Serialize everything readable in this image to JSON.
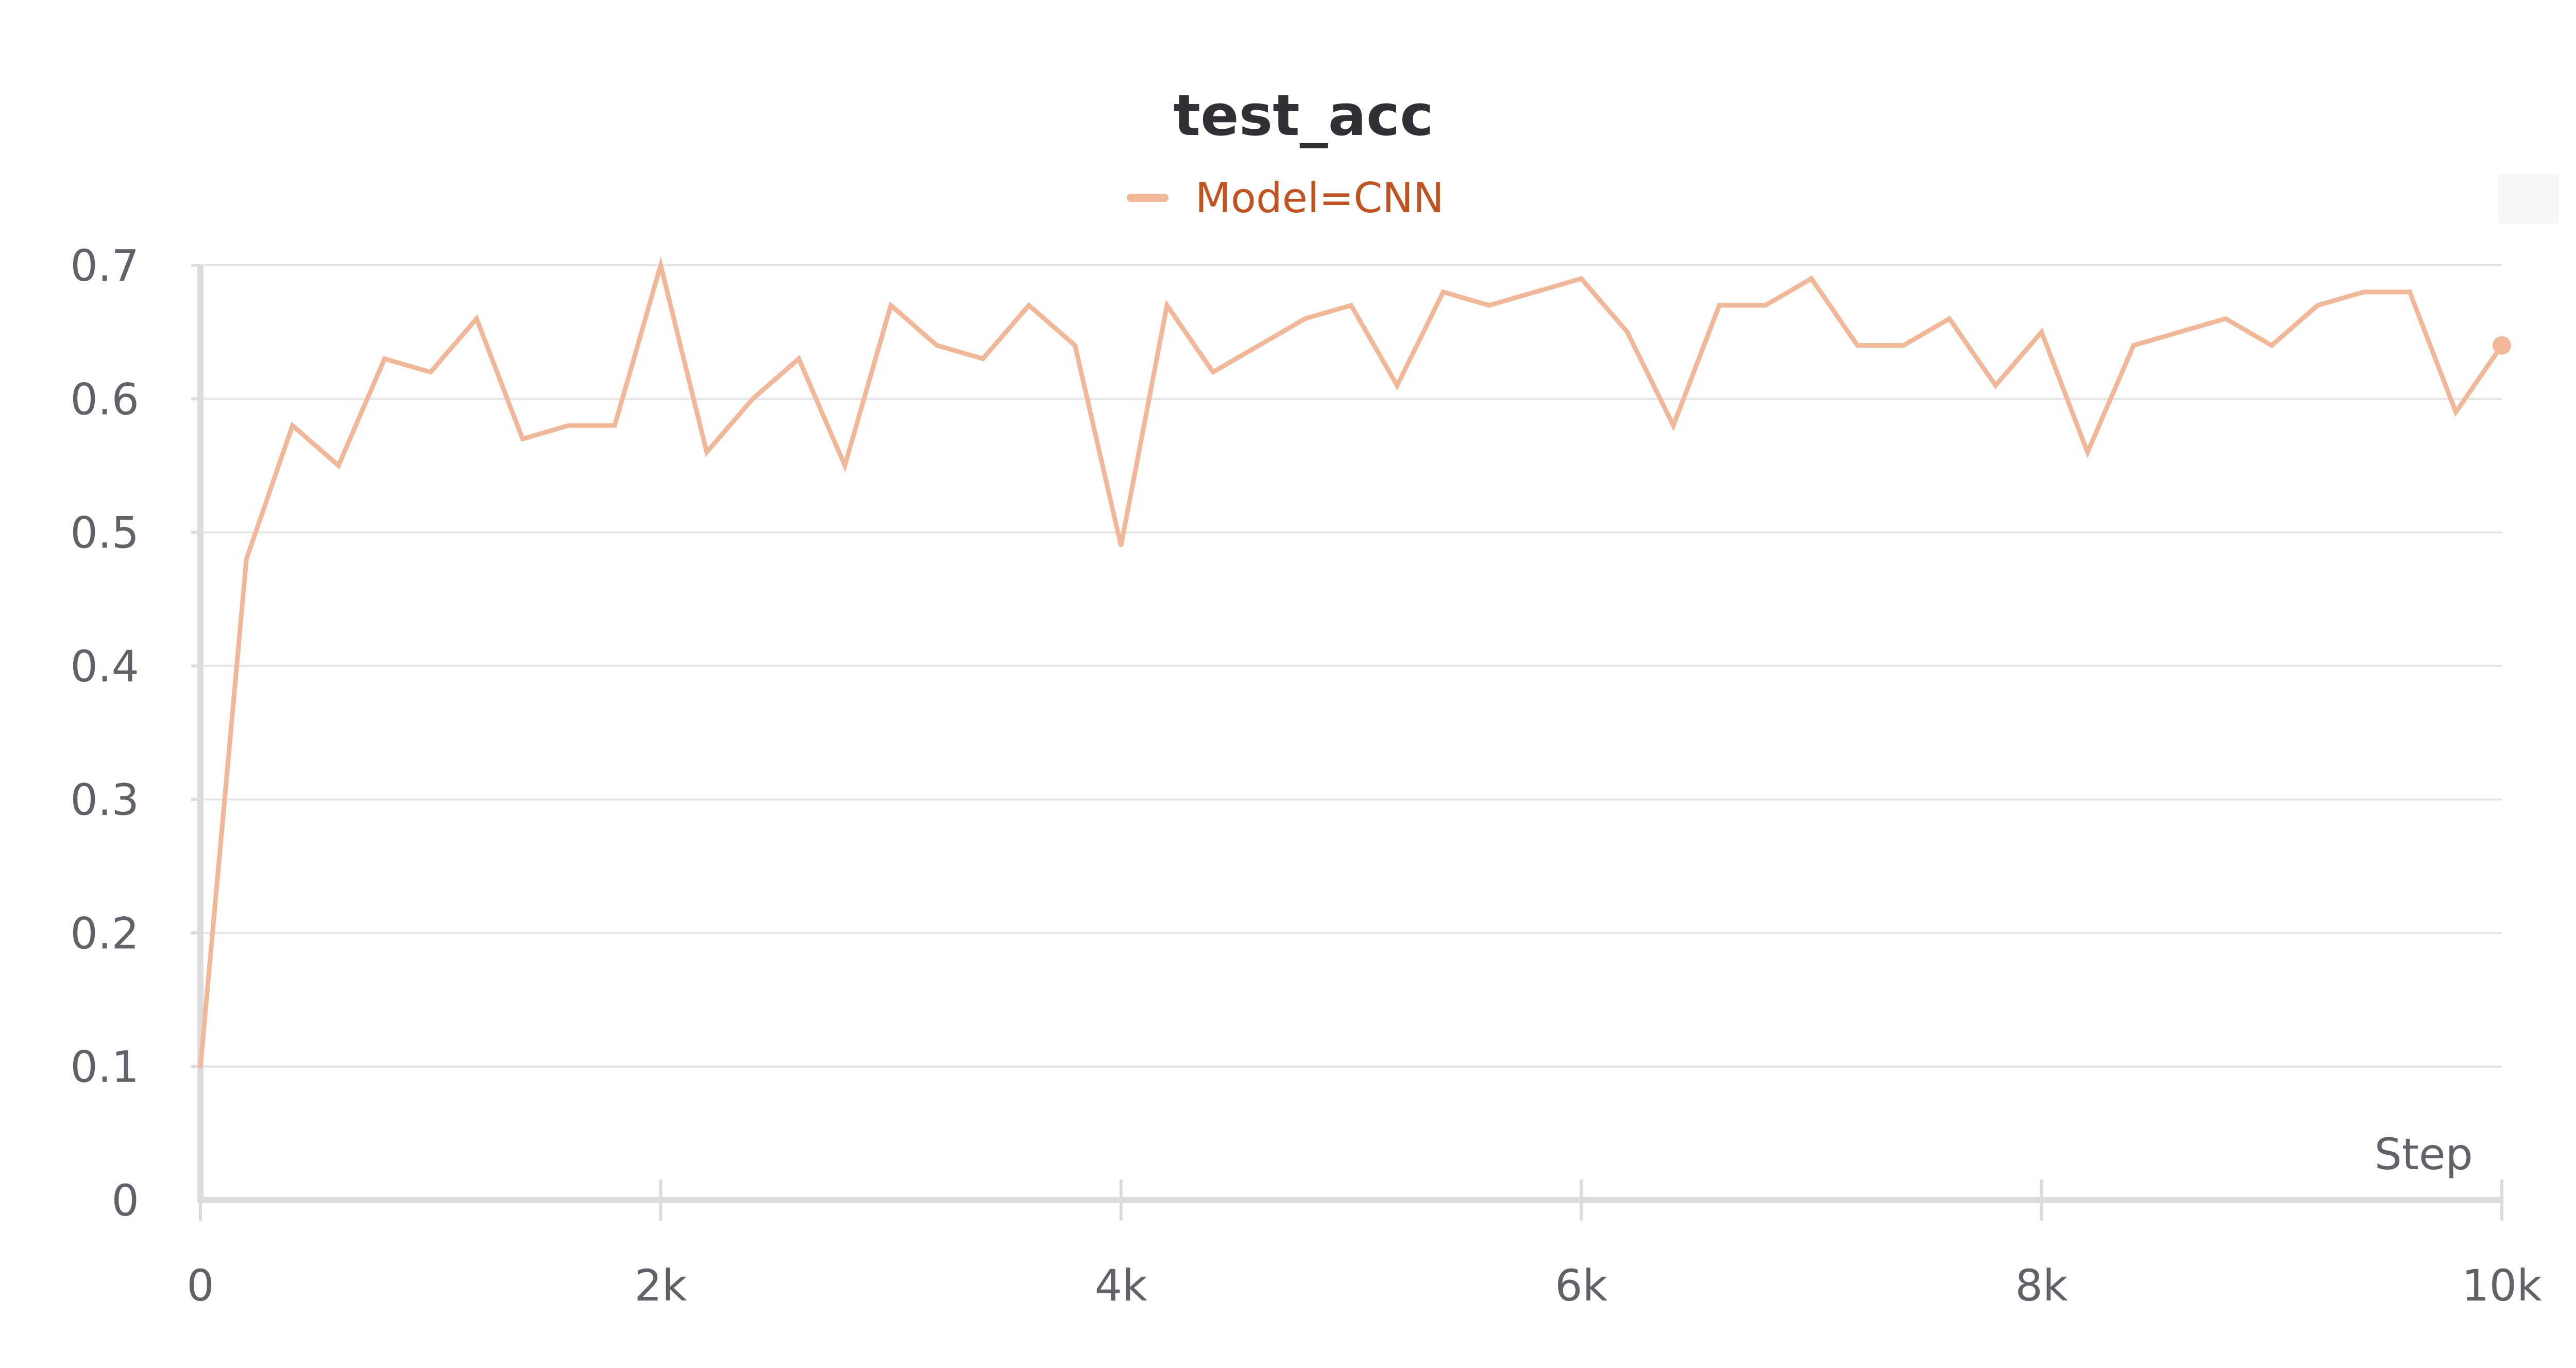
{
  "chart_data": {
    "type": "line",
    "title": "test_acc",
    "xlabel": "Step",
    "ylabel": "",
    "xlim": [
      0,
      10000
    ],
    "ylim": [
      0,
      0.7
    ],
    "x_ticks": [
      0,
      2000,
      4000,
      6000,
      8000,
      10000
    ],
    "x_tick_labels": [
      "0",
      "2k",
      "4k",
      "6k",
      "8k",
      "10k"
    ],
    "y_ticks": [
      0,
      0.1,
      0.2,
      0.3,
      0.4,
      0.5,
      0.6,
      0.7
    ],
    "y_tick_labels": [
      "0",
      "0.1",
      "0.2",
      "0.3",
      "0.4",
      "0.5",
      "0.6",
      "0.7"
    ],
    "grid": true,
    "legend": {
      "placement": "top-center",
      "entries": [
        "Model=CNN"
      ]
    },
    "series": [
      {
        "name": "Model=CNN",
        "color": "#f0b898",
        "x": [
          0,
          200,
          400,
          600,
          800,
          1000,
          1200,
          1400,
          1600,
          1800,
          2000,
          2200,
          2400,
          2600,
          2800,
          3000,
          3200,
          3400,
          3600,
          3800,
          4000,
          4200,
          4400,
          4600,
          4800,
          5000,
          5200,
          5400,
          5600,
          5800,
          6000,
          6200,
          6400,
          6600,
          6800,
          7000,
          7200,
          7400,
          7600,
          7800,
          8000,
          8200,
          8400,
          8600,
          8800,
          9000,
          9200,
          9400,
          9600,
          9800,
          10000
        ],
        "y": [
          0.1,
          0.48,
          0.58,
          0.55,
          0.63,
          0.62,
          0.66,
          0.57,
          0.58,
          0.58,
          0.7,
          0.56,
          0.6,
          0.63,
          0.55,
          0.67,
          0.64,
          0.63,
          0.67,
          0.64,
          0.49,
          0.67,
          0.62,
          0.64,
          0.66,
          0.67,
          0.61,
          0.68,
          0.67,
          0.68,
          0.69,
          0.65,
          0.58,
          0.67,
          0.67,
          0.69,
          0.64,
          0.64,
          0.66,
          0.61,
          0.65,
          0.56,
          0.64,
          0.65,
          0.66,
          0.64,
          0.67,
          0.68,
          0.68,
          0.59,
          0.64
        ]
      }
    ]
  }
}
